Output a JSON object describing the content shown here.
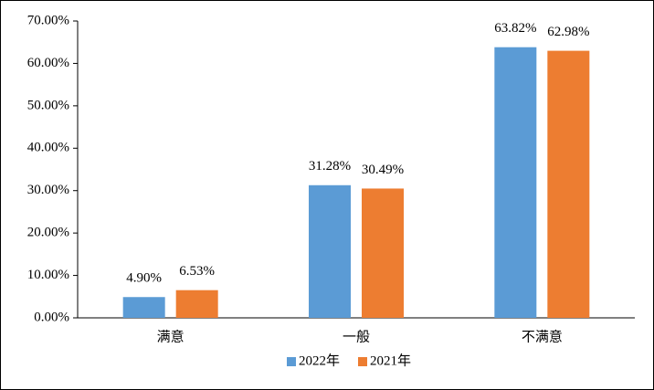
{
  "chart_data": {
    "type": "bar",
    "categories": [
      "满意",
      "一般",
      "不满意"
    ],
    "series": [
      {
        "name": "2022年",
        "color": "#5b9bd5",
        "values": [
          4.9,
          31.28,
          63.82
        ],
        "value_labels": [
          "4.90%",
          "31.28%",
          "63.82%"
        ]
      },
      {
        "name": "2021年",
        "color": "#ed7d31",
        "values": [
          6.53,
          30.49,
          62.98
        ],
        "value_labels": [
          "6.53%",
          "30.49%",
          "62.98%"
        ]
      }
    ],
    "ylim": [
      0,
      70
    ],
    "yticks": [
      {
        "value": 0,
        "label": "0.00%"
      },
      {
        "value": 10,
        "label": "10.00%"
      },
      {
        "value": 20,
        "label": "20.00%"
      },
      {
        "value": 30,
        "label": "30.00%"
      },
      {
        "value": 40,
        "label": "40.00%"
      },
      {
        "value": 50,
        "label": "50.00%"
      },
      {
        "value": 60,
        "label": "60.00%"
      },
      {
        "value": 70,
        "label": "70.00%"
      }
    ],
    "grid": false,
    "legend": "bottom"
  }
}
